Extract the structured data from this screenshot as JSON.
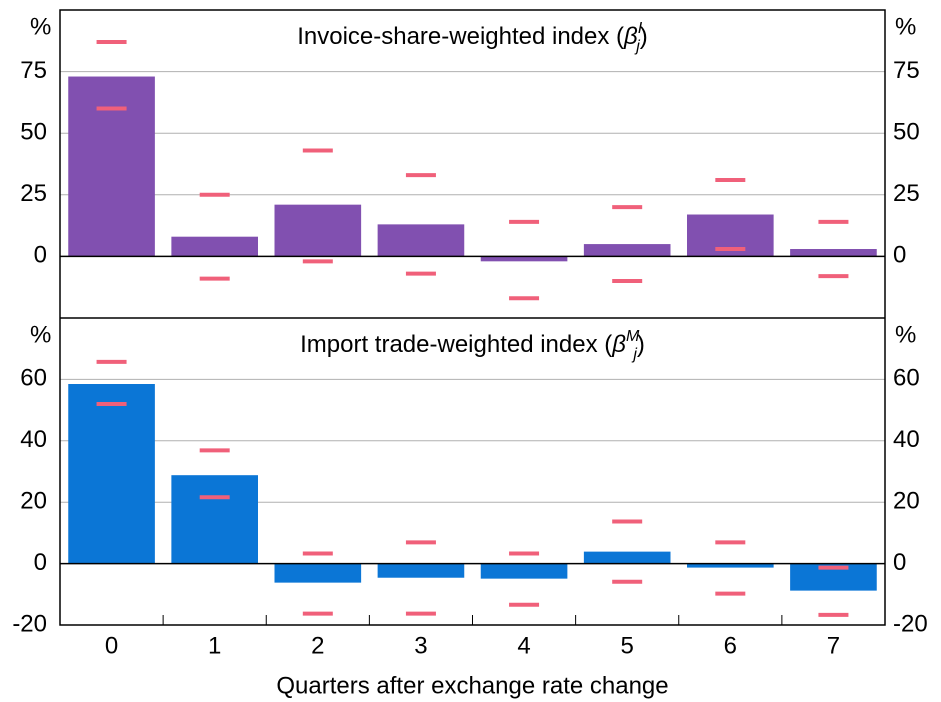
{
  "chart_data": [
    {
      "type": "bar",
      "title": "Invoice-share-weighted index (",
      "title_symbol": "β",
      "title_sup": "I",
      "title_sub": "j",
      "title_end": ")",
      "y_label": "%",
      "ylim": [
        -25,
        100
      ],
      "yticks": [
        0,
        25,
        50,
        75
      ],
      "color": "#8150b0",
      "values": [
        73,
        8,
        21,
        13,
        -2,
        5,
        17,
        3
      ],
      "interval": {
        "color": "#f0607a",
        "upper": [
          87,
          25,
          43,
          33,
          14,
          20,
          31,
          14
        ],
        "lower": [
          60,
          -9,
          -2,
          -7,
          -17,
          -10,
          3,
          -8
        ]
      }
    },
    {
      "type": "bar",
      "title": "Import trade-weighted index (",
      "title_symbol": "β",
      "title_sup": "M",
      "title_sub": "j",
      "title_end": ")",
      "y_label": "%",
      "ylim": [
        -20,
        80
      ],
      "yticks": [
        -20,
        0,
        20,
        40,
        60
      ],
      "color": "#0b76d6",
      "categories": [
        "0",
        "1",
        "2",
        "3",
        "4",
        "5",
        "6",
        "7"
      ],
      "x_label": "Quarters after exchange rate change",
      "values": [
        58.5,
        28.8,
        -6.2,
        -4.6,
        -4.9,
        3.9,
        -1.3,
        -8.8
      ],
      "interval": {
        "color": "#f0607a",
        "upper": [
          65.7,
          36.9,
          3.3,
          6.9,
          3.3,
          13.7,
          6.9,
          -1.3
        ],
        "lower": [
          52,
          21.6,
          -16.3,
          -16.3,
          -13.4,
          -5.9,
          -9.8,
          -16.7
        ]
      }
    }
  ]
}
